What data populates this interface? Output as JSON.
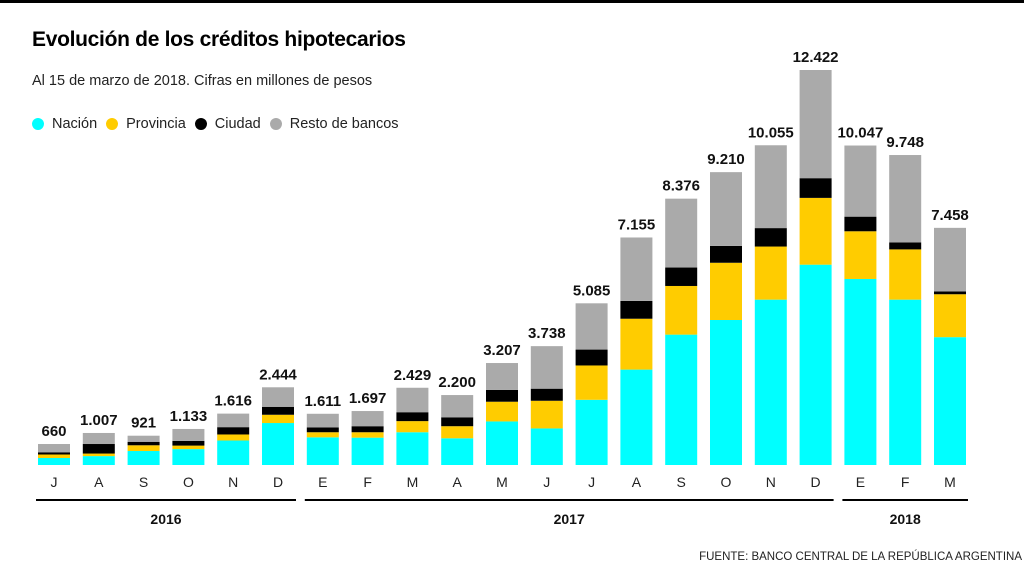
{
  "chart_data": {
    "type": "bar",
    "stacked": true,
    "title": "Evolución de los créditos hipotecarios",
    "subtitle": "Al 15 de marzo de 2018. Cifras en millones de pesos",
    "xlabel": "",
    "ylabel": "",
    "ylim": [
      0,
      12422
    ],
    "grid": false,
    "legend_position": "top-left",
    "categories": [
      "J",
      "A",
      "S",
      "O",
      "N",
      "D",
      "E",
      "F",
      "M",
      "A",
      "M",
      "J",
      "J",
      "A",
      "S",
      "O",
      "N",
      "D",
      "E",
      "F",
      "M"
    ],
    "year_groups": [
      {
        "label": "2016",
        "start": 0,
        "end": 5
      },
      {
        "label": "2017",
        "start": 6,
        "end": 17
      },
      {
        "label": "2018",
        "start": 18,
        "end": 20
      }
    ],
    "totals": [
      660,
      1007,
      921,
      1133,
      1616,
      2444,
      1611,
      1697,
      2429,
      2200,
      3207,
      3738,
      5085,
      7155,
      8376,
      9210,
      10055,
      12422,
      10047,
      9748,
      7458
    ],
    "total_labels": [
      "660",
      "1.007",
      "921",
      "1.133",
      "1.616",
      "2.444",
      "1.611",
      "1.697",
      "2.429",
      "2.200",
      "3.207",
      "3.738",
      "5.085",
      "7.155",
      "8.376",
      "9.210",
      "10.055",
      "12.422",
      "10.047",
      "9.748",
      "7.458"
    ],
    "series": [
      {
        "name": "Nación",
        "color": "#00FFFF",
        "values": [
          220,
          280,
          440,
          500,
          770,
          1320,
          870,
          860,
          1030,
          840,
          1370,
          1150,
          2050,
          3000,
          4100,
          4560,
          5200,
          6300,
          5850,
          5200,
          4020
        ]
      },
      {
        "name": "Provincia",
        "color": "#FFCC00",
        "values": [
          110,
          80,
          180,
          110,
          190,
          260,
          160,
          170,
          350,
          380,
          620,
          870,
          1080,
          1600,
          1530,
          1800,
          1670,
          2100,
          1500,
          1580,
          1350
        ]
      },
      {
        "name": "Ciudad",
        "color": "#000000",
        "values": [
          70,
          300,
          110,
          150,
          230,
          250,
          150,
          190,
          280,
          280,
          370,
          380,
          500,
          560,
          580,
          530,
          580,
          620,
          460,
          220,
          90
        ]
      },
      {
        "name": "Resto de bancos",
        "color": "#AAAAAA",
        "values": [
          260,
          347,
          191,
          373,
          426,
          614,
          431,
          477,
          769,
          700,
          847,
          1338,
          1455,
          1995,
          2166,
          2320,
          2605,
          3402,
          2237,
          2748,
          1998
        ]
      }
    ]
  },
  "source": "FUENTE: BANCO CENTRAL DE LA REPÚBLICA ARGENTINA"
}
